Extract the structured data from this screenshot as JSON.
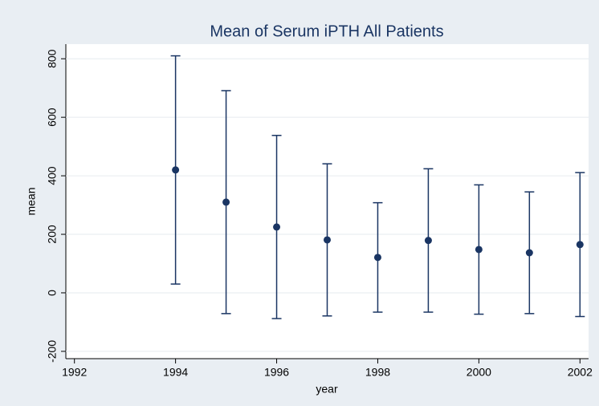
{
  "chart_data": {
    "type": "errorbar",
    "title": "Mean of Serum iPTH  All Patients",
    "x_label": "year",
    "y_label": "mean",
    "x": [
      1994,
      1995,
      1996,
      1997,
      1998,
      1999,
      2000,
      2001,
      2002
    ],
    "values": [
      420,
      310,
      225,
      181,
      121,
      179,
      148,
      137,
      165
    ],
    "errors": [
      390,
      381,
      313,
      260,
      187,
      245,
      221,
      208,
      246
    ],
    "color": "#1a3563",
    "xlim": [
      1991.83,
      2002.17
    ],
    "xticks": [
      1992,
      1994,
      1996,
      1998,
      2000,
      2002
    ],
    "ylim": [
      -225,
      850
    ],
    "yticks": [
      -200,
      0,
      200,
      400,
      600,
      800
    ],
    "grid": true
  }
}
